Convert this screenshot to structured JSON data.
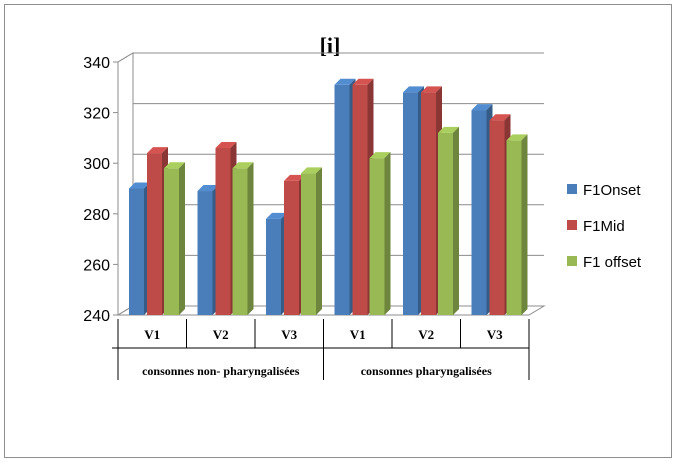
{
  "chart_data": {
    "type": "bar",
    "title": "[i]",
    "ylim": [
      240,
      340
    ],
    "yticks": [
      240,
      260,
      280,
      300,
      320,
      340
    ],
    "grid": true,
    "legend_position": "right",
    "categories": [
      "V1",
      "V2",
      "V3",
      "V1",
      "V2",
      "V3"
    ],
    "groups": [
      {
        "label": "consonnes non- pharyngalisées",
        "span": 3
      },
      {
        "label": "consonnes pharyngalisées",
        "span": 3
      }
    ],
    "series": [
      {
        "name": "F1Onset",
        "color": "#4a7ebb",
        "values": [
          290,
          289,
          278,
          331,
          328,
          321
        ]
      },
      {
        "name": "F1Mid",
        "color": "#be4b48",
        "values": [
          304,
          306,
          293,
          331,
          328,
          317
        ]
      },
      {
        "name": "F1 offset",
        "color": "#98b954",
        "values": [
          298,
          298,
          296,
          302,
          312,
          309
        ]
      }
    ]
  }
}
